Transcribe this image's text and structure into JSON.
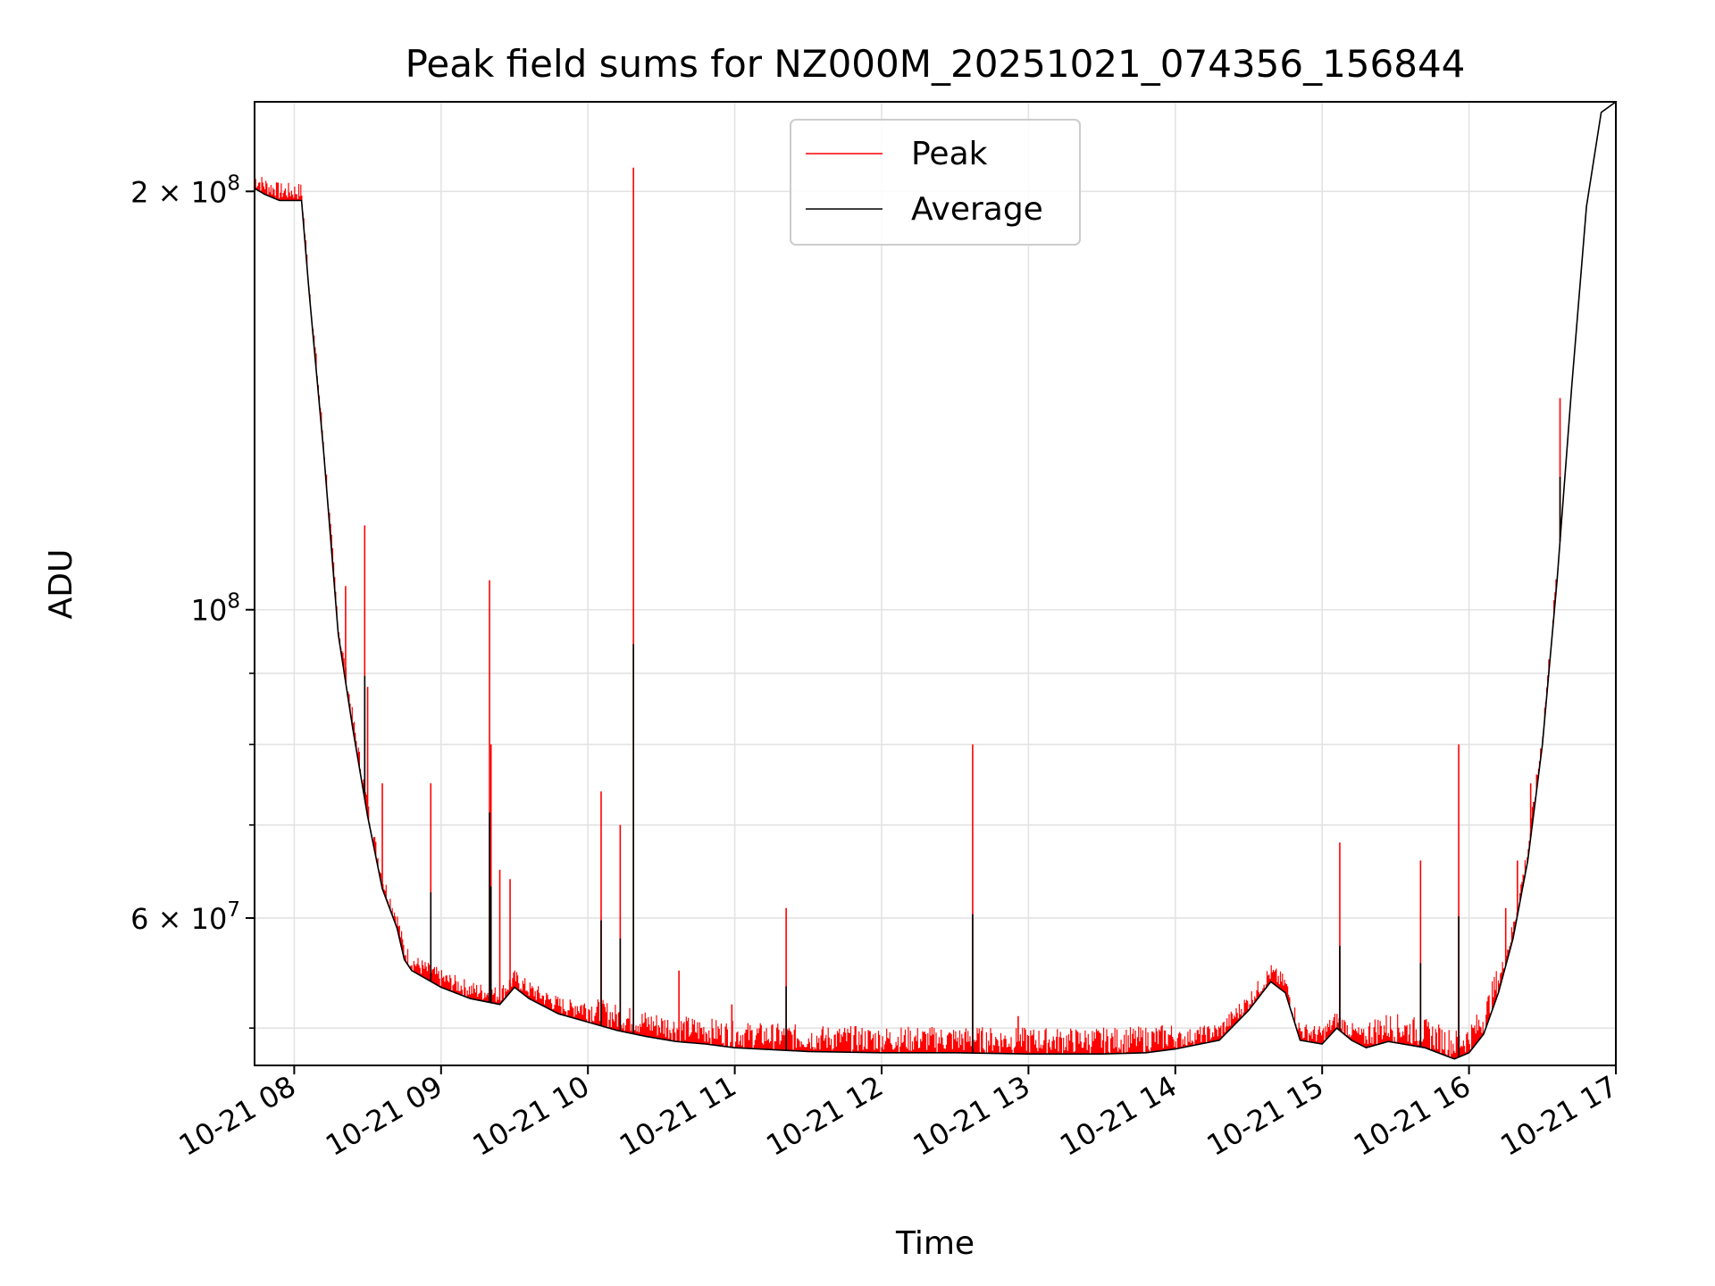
{
  "chart_data": {
    "type": "line",
    "title": "Peak field sums for NZ000M_20251021_074356_156844",
    "xlabel": "Time",
    "ylabel": "ADU",
    "yscale": "log",
    "xlim": [
      7.73,
      17.0
    ],
    "ylim": [
      47000000,
      232000000
    ],
    "grid": true,
    "legend": {
      "location": "upper center",
      "entries": [
        "Peak",
        "Average"
      ]
    },
    "x_ticks": [
      {
        "value": 8,
        "label": "10-21 08"
      },
      {
        "value": 9,
        "label": "10-21 09"
      },
      {
        "value": 10,
        "label": "10-21 10"
      },
      {
        "value": 11,
        "label": "10-21 11"
      },
      {
        "value": 12,
        "label": "10-21 12"
      },
      {
        "value": 13,
        "label": "10-21 13"
      },
      {
        "value": 14,
        "label": "10-21 14"
      },
      {
        "value": 15,
        "label": "10-21 15"
      },
      {
        "value": 16,
        "label": "10-21 16"
      },
      {
        "value": 17,
        "label": "10-21 17"
      }
    ],
    "y_ticks": [
      {
        "value": 200000000,
        "base": "2 × 10",
        "exp": "8"
      },
      {
        "value": 100000000,
        "base": "10",
        "exp": "8"
      },
      {
        "value": 60000000,
        "base": "6 × 10",
        "exp": "7"
      }
    ],
    "y_minor_ticks": [
      50000000,
      70000000,
      80000000,
      90000000,
      300000000
    ],
    "series": [
      {
        "name": "Average",
        "color": "#000000",
        "x": [
          7.73,
          7.8,
          7.9,
          8.05,
          8.1,
          8.2,
          8.3,
          8.4,
          8.5,
          8.6,
          8.7,
          8.75,
          8.8,
          9.0,
          9.2,
          9.4,
          9.5,
          9.6,
          9.8,
          10.0,
          10.2,
          10.4,
          10.6,
          10.8,
          11.0,
          11.5,
          12.0,
          12.5,
          13.0,
          13.5,
          13.8,
          14.0,
          14.3,
          14.5,
          14.65,
          14.75,
          14.85,
          15.0,
          15.1,
          15.2,
          15.3,
          15.45,
          15.55,
          15.7,
          15.9,
          16.0,
          16.1,
          16.2,
          16.3,
          16.4,
          16.5,
          16.6,
          16.7,
          16.8,
          16.9,
          17.0
        ],
        "y": [
          201000000,
          199000000,
          197000000,
          197000000,
          170000000,
          130000000,
          96000000,
          82000000,
          71000000,
          63000000,
          59000000,
          56000000,
          55000000,
          53500000,
          52500000,
          52000000,
          53500000,
          52500000,
          51200000,
          50500000,
          49800000,
          49300000,
          48900000,
          48700000,
          48400000,
          48100000,
          48000000,
          48000000,
          47900000,
          47900000,
          48000000,
          48300000,
          49000000,
          51500000,
          54000000,
          53000000,
          49000000,
          48700000,
          50000000,
          49000000,
          48400000,
          48900000,
          48700000,
          48400000,
          47500000,
          48000000,
          49500000,
          53000000,
          58000000,
          66000000,
          80000000,
          105000000,
          145000000,
          195000000,
          228000000,
          232000000
        ]
      },
      {
        "name": "Peak",
        "color": "#ff0000",
        "spikes": [
          {
            "x": 7.88,
            "y": 203000000
          },
          {
            "x": 8.35,
            "y": 104000000
          },
          {
            "x": 8.48,
            "y": 115000000
          },
          {
            "x": 8.5,
            "y": 88000000
          },
          {
            "x": 8.6,
            "y": 75000000
          },
          {
            "x": 8.93,
            "y": 75000000
          },
          {
            "x": 9.33,
            "y": 105000000
          },
          {
            "x": 9.34,
            "y": 80000000
          },
          {
            "x": 9.4,
            "y": 65000000
          },
          {
            "x": 9.47,
            "y": 64000000
          },
          {
            "x": 10.09,
            "y": 74000000
          },
          {
            "x": 10.22,
            "y": 70000000
          },
          {
            "x": 10.31,
            "y": 208000000
          },
          {
            "x": 10.62,
            "y": 55000000
          },
          {
            "x": 10.98,
            "y": 52000000
          },
          {
            "x": 11.35,
            "y": 61000000
          },
          {
            "x": 12.62,
            "y": 80000000
          },
          {
            "x": 12.93,
            "y": 51000000
          },
          {
            "x": 15.12,
            "y": 68000000
          },
          {
            "x": 15.67,
            "y": 66000000
          },
          {
            "x": 15.93,
            "y": 80000000
          },
          {
            "x": 16.25,
            "y": 61000000
          },
          {
            "x": 16.33,
            "y": 66000000
          },
          {
            "x": 16.42,
            "y": 75000000
          },
          {
            "x": 16.62,
            "y": 142000000
          }
        ]
      }
    ]
  }
}
